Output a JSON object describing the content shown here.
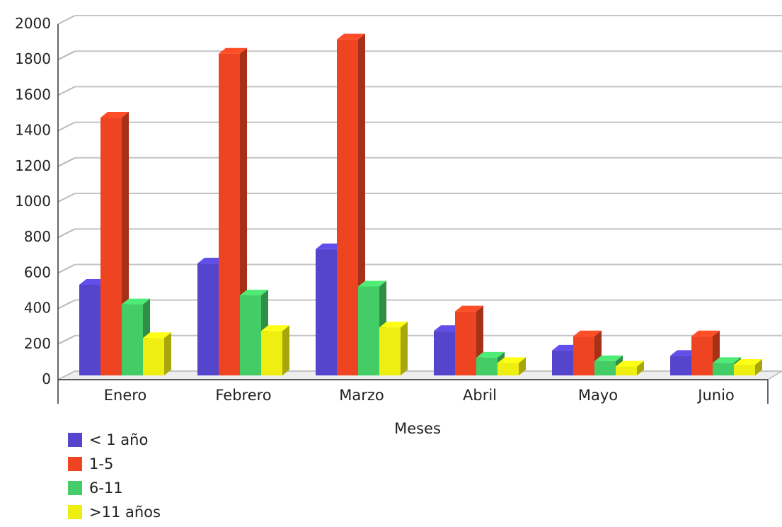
{
  "chart_data": {
    "type": "bar",
    "title": "",
    "xlabel": "Meses",
    "ylabel": "",
    "categories": [
      "Enero",
      "Febrero",
      "Marzo",
      "Abril",
      "Mayo",
      "Junio"
    ],
    "ylim": [
      0,
      2000
    ],
    "yticks": [
      "0",
      "200",
      "400",
      "600",
      "800",
      "1000",
      "1200",
      "1400",
      "1600",
      "1800",
      "2000"
    ],
    "grid": true,
    "legend_position": "bottom-left",
    "series": [
      {
        "name": "< 1 año",
        "color": "#5544cc",
        "values": [
          510,
          630,
          710,
          250,
          140,
          110
        ]
      },
      {
        "name": "1-5",
        "color": "#ee4422",
        "values": [
          1450,
          1810,
          1890,
          360,
          220,
          220
        ]
      },
      {
        "name": "6-11",
        "color": "#44cc66",
        "values": [
          400,
          450,
          500,
          100,
          80,
          70
        ]
      },
      {
        "name": ">11 años",
        "color": "#eeee11",
        "values": [
          210,
          250,
          270,
          70,
          50,
          60
        ]
      }
    ]
  }
}
